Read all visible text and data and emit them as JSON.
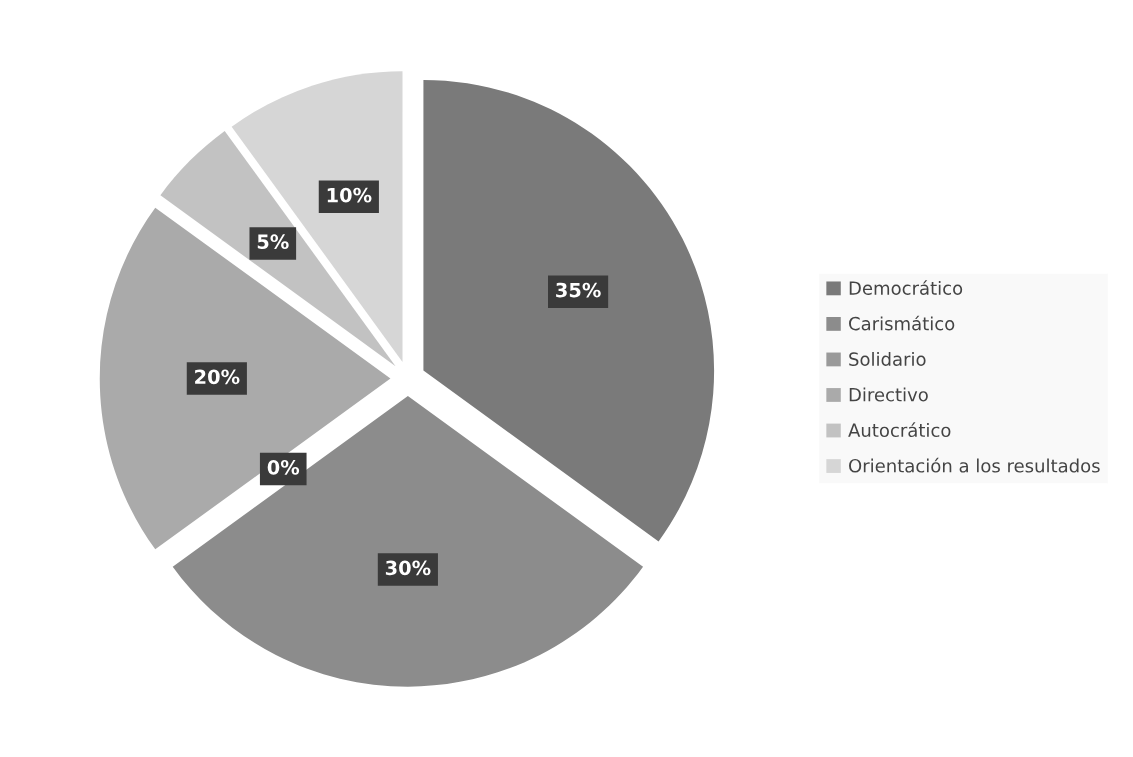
{
  "chart_data": {
    "type": "pie",
    "categories": [
      "Democrático",
      "Carismático",
      "Solidario",
      "Directivo",
      "Autocrático",
      "Orientación a los resultados"
    ],
    "values": [
      35,
      30,
      0,
      20,
      5,
      10
    ],
    "value_labels": [
      "35%",
      "30%",
      "0%",
      "20%",
      "5%",
      "10%"
    ],
    "colors": [
      "#7a7a7a",
      "#8c8c8c",
      "#9a9a9a",
      "#aaaaaa",
      "#c2c2c2",
      "#d6d6d6"
    ],
    "legend": "right"
  }
}
